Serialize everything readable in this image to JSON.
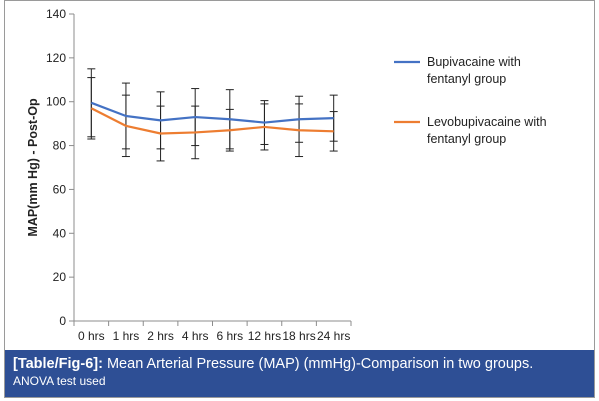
{
  "chart_data": {
    "type": "line",
    "title": "",
    "xlabel": "",
    "ylabel": "MAP(mm Hg) - Post-Op",
    "ylim": [
      0,
      140
    ],
    "yticks": [
      0,
      20,
      40,
      60,
      80,
      100,
      120,
      140
    ],
    "categories": [
      "0 hrs",
      "1 hrs",
      "2 hrs",
      "4 hrs",
      "6 hrs",
      "12 hrs",
      "18 hrs",
      "24 hrs"
    ],
    "grid": false,
    "legend_position": "right",
    "series": [
      {
        "name": "Bupivacaine with fentanyl group",
        "color": "#4472c4",
        "values": [
          99.5,
          93.5,
          91.5,
          93,
          92,
          90.5,
          92,
          92.5
        ],
        "error": [
          15.5,
          15,
          13,
          13,
          13.5,
          10,
          10.5,
          10.5
        ]
      },
      {
        "name": "Levobupivacaine with fentanyl group",
        "color": "#ed7d31",
        "values": [
          97,
          89,
          85.5,
          86,
          87,
          88.5,
          87,
          86.5
        ],
        "error": [
          14,
          14,
          12.5,
          12,
          9.5,
          10.5,
          12,
          9
        ]
      }
    ]
  },
  "caption": {
    "label": "[Table/Fig-6]:",
    "text": " Mean Arterial Pressure (MAP) (mmHg)-Comparison in two groups.",
    "note": "ANOVA test used"
  }
}
